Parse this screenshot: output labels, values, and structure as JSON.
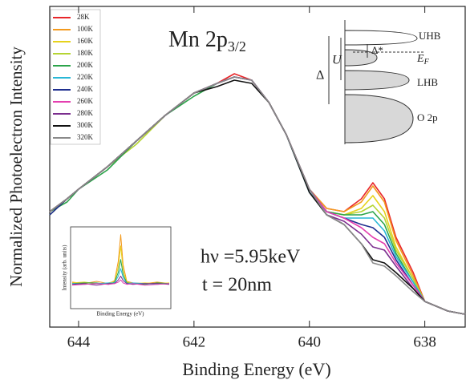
{
  "chart_data": [
    {
      "type": "line",
      "title": "Mn 2p",
      "title_subscript": "3/2",
      "x_label": "Binding Energy (eV)",
      "y_label": "Normalized Photoelectron Intensity",
      "annotations": [
        "hν =5.95keV",
        "t = 20nm"
      ],
      "xlim": [
        644.5,
        637.3
      ],
      "xticks": [
        644,
        642,
        640,
        638
      ],
      "ylim": [
        0,
        1
      ],
      "x": [
        644.5,
        644.2,
        644,
        643.5,
        643,
        642.5,
        642,
        641.6,
        641.3,
        641,
        640.7,
        640.4,
        640,
        639.7,
        639.4,
        639.1,
        638.9,
        638.7,
        638.5,
        638.2,
        638,
        637.6,
        637.3
      ],
      "series": [
        {
          "name": "28K",
          "color": "#e8262a",
          "values": [
            0.36,
            0.4,
            0.43,
            0.5,
            0.58,
            0.66,
            0.73,
            0.76,
            0.79,
            0.77,
            0.7,
            0.6,
            0.43,
            0.37,
            0.36,
            0.4,
            0.45,
            0.4,
            0.28,
            0.17,
            0.08,
            0.05,
            0.04
          ]
        },
        {
          "name": "100K",
          "color": "#f39a1e",
          "values": [
            0.36,
            0.4,
            0.43,
            0.5,
            0.58,
            0.66,
            0.73,
            0.76,
            0.78,
            0.77,
            0.7,
            0.6,
            0.43,
            0.37,
            0.36,
            0.39,
            0.44,
            0.39,
            0.27,
            0.16,
            0.08,
            0.05,
            0.04
          ]
        },
        {
          "name": "160K",
          "color": "#e6d21c",
          "values": [
            0.36,
            0.4,
            0.43,
            0.5,
            0.58,
            0.66,
            0.73,
            0.76,
            0.78,
            0.77,
            0.7,
            0.6,
            0.43,
            0.36,
            0.35,
            0.37,
            0.41,
            0.36,
            0.25,
            0.15,
            0.08,
            0.05,
            0.04
          ]
        },
        {
          "name": "180K",
          "color": "#b5d433",
          "values": [
            0.35,
            0.4,
            0.43,
            0.5,
            0.57,
            0.66,
            0.73,
            0.76,
            0.78,
            0.77,
            0.7,
            0.6,
            0.43,
            0.36,
            0.35,
            0.36,
            0.38,
            0.34,
            0.24,
            0.15,
            0.08,
            0.05,
            0.04
          ]
        },
        {
          "name": "200K",
          "color": "#2ca44a",
          "values": [
            0.36,
            0.39,
            0.43,
            0.49,
            0.58,
            0.66,
            0.72,
            0.76,
            0.78,
            0.77,
            0.7,
            0.6,
            0.43,
            0.36,
            0.35,
            0.35,
            0.36,
            0.32,
            0.23,
            0.14,
            0.08,
            0.05,
            0.04
          ]
        },
        {
          "name": "220K",
          "color": "#29b7d6",
          "values": [
            0.36,
            0.4,
            0.43,
            0.5,
            0.58,
            0.66,
            0.73,
            0.76,
            0.78,
            0.77,
            0.7,
            0.6,
            0.42,
            0.36,
            0.34,
            0.34,
            0.34,
            0.3,
            0.22,
            0.14,
            0.08,
            0.05,
            0.04
          ]
        },
        {
          "name": "240K",
          "color": "#1f2f8f",
          "values": [
            0.35,
            0.4,
            0.43,
            0.5,
            0.58,
            0.66,
            0.73,
            0.76,
            0.78,
            0.77,
            0.7,
            0.6,
            0.43,
            0.36,
            0.34,
            0.32,
            0.31,
            0.28,
            0.21,
            0.13,
            0.08,
            0.05,
            0.04
          ]
        },
        {
          "name": "260K",
          "color": "#e43fb0",
          "values": [
            0.36,
            0.4,
            0.43,
            0.5,
            0.58,
            0.66,
            0.73,
            0.76,
            0.78,
            0.77,
            0.7,
            0.6,
            0.43,
            0.36,
            0.34,
            0.31,
            0.28,
            0.26,
            0.2,
            0.13,
            0.08,
            0.05,
            0.04
          ]
        },
        {
          "name": "280K",
          "color": "#7b2e8e",
          "values": [
            0.36,
            0.4,
            0.43,
            0.5,
            0.58,
            0.66,
            0.73,
            0.76,
            0.78,
            0.77,
            0.7,
            0.6,
            0.43,
            0.35,
            0.33,
            0.29,
            0.25,
            0.24,
            0.19,
            0.12,
            0.08,
            0.05,
            0.04
          ]
        },
        {
          "name": "300K",
          "color": "#111111",
          "values": [
            0.36,
            0.4,
            0.43,
            0.5,
            0.58,
            0.66,
            0.73,
            0.75,
            0.77,
            0.76,
            0.7,
            0.6,
            0.42,
            0.35,
            0.32,
            0.26,
            0.21,
            0.2,
            0.17,
            0.12,
            0.08,
            0.05,
            0.04
          ]
        },
        {
          "name": "320K",
          "color": "#8a8a8a",
          "values": [
            0.36,
            0.4,
            0.43,
            0.5,
            0.58,
            0.66,
            0.73,
            0.76,
            0.78,
            0.77,
            0.7,
            0.6,
            0.43,
            0.35,
            0.32,
            0.26,
            0.2,
            0.19,
            0.16,
            0.11,
            0.08,
            0.05,
            0.04
          ]
        }
      ]
    },
    {
      "type": "line",
      "x_label": "Binding Energy (eV)",
      "y_label": "Intensity (arb. units)",
      "xlim": [
        645,
        637
      ],
      "ylim": [
        0,
        1
      ],
      "x": [
        645,
        644,
        643,
        642,
        641.5,
        641.2,
        641,
        640.8,
        640.5,
        640,
        639,
        638,
        637
      ],
      "series": [
        {
          "color": "#f39a1e",
          "values": [
            0.32,
            0.3,
            0.33,
            0.3,
            0.34,
            0.6,
            0.95,
            0.55,
            0.33,
            0.31,
            0.3,
            0.32,
            0.3
          ]
        },
        {
          "color": "#e6d21c",
          "values": [
            0.31,
            0.32,
            0.3,
            0.31,
            0.33,
            0.52,
            0.8,
            0.48,
            0.32,
            0.3,
            0.31,
            0.3,
            0.31
          ]
        },
        {
          "color": "#2ca44a",
          "values": [
            0.3,
            0.31,
            0.31,
            0.29,
            0.32,
            0.45,
            0.62,
            0.42,
            0.31,
            0.3,
            0.29,
            0.31,
            0.3
          ]
        },
        {
          "color": "#29b7d6",
          "values": [
            0.3,
            0.29,
            0.3,
            0.31,
            0.31,
            0.4,
            0.5,
            0.38,
            0.3,
            0.31,
            0.3,
            0.29,
            0.3
          ]
        },
        {
          "color": "#7b2e8e",
          "values": [
            0.29,
            0.3,
            0.28,
            0.3,
            0.3,
            0.35,
            0.4,
            0.34,
            0.3,
            0.29,
            0.3,
            0.3,
            0.29
          ]
        },
        {
          "color": "#e43fb0",
          "values": [
            0.28,
            0.29,
            0.3,
            0.29,
            0.3,
            0.32,
            0.35,
            0.31,
            0.29,
            0.3,
            0.28,
            0.29,
            0.3
          ]
        }
      ]
    }
  ],
  "diagram": {
    "labels": {
      "uhb": "UHB",
      "delta_star": "Δ*",
      "ef": "E",
      "ef_sub": "F",
      "u": "U",
      "delta": "Δ",
      "lhb": "LHB",
      "o2p": "O 2p"
    }
  }
}
